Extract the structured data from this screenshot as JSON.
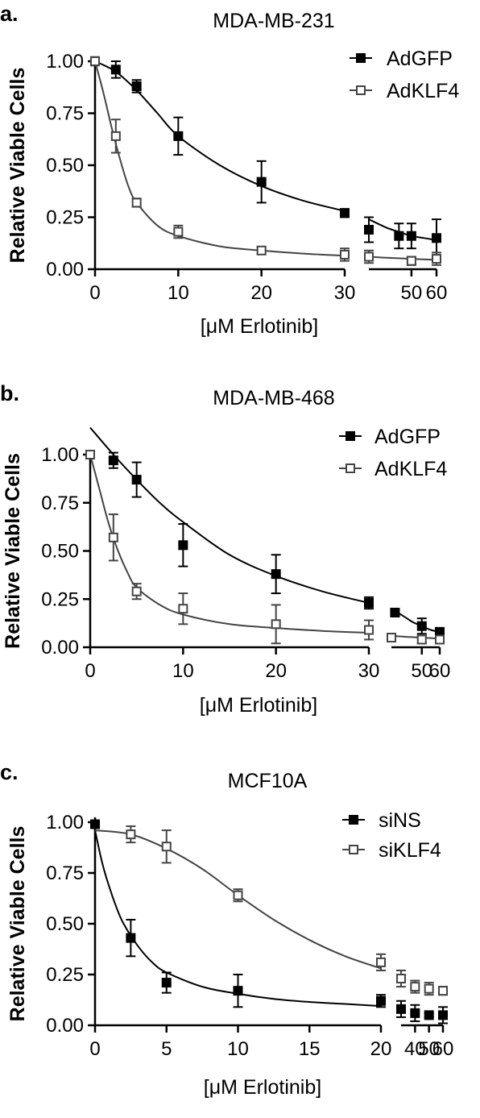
{
  "colors": {
    "filled": "#000000",
    "open": "#444444",
    "axis": "#000000"
  },
  "chart_data": [
    {
      "type": "line",
      "panel_label": "a.",
      "title": "MDA-MB-231",
      "xlabel": "[μM Erlotinib]",
      "ylabel": "Relative Viable Cells",
      "ylim": [
        0,
        1.0
      ],
      "yticks": [
        "0.00",
        "0.25",
        "0.50",
        "0.75",
        "1.00"
      ],
      "yticks_values": [
        0,
        0.25,
        0.5,
        0.75,
        1.0
      ],
      "x_segments": [
        {
          "range": [
            0,
            30
          ],
          "ticks": [
            0,
            10,
            20,
            30
          ],
          "tick_labels": [
            "0",
            "10",
            "20",
            "30"
          ]
        },
        {
          "range": [
            33,
            60
          ],
          "ticks": [
            50,
            60
          ],
          "tick_labels": [
            "50",
            "60"
          ]
        }
      ],
      "legend_position": "top-right",
      "series": [
        {
          "name": "AdGFP",
          "marker": "filled-square",
          "x": [
            0,
            2.5,
            5,
            10,
            20,
            30,
            33,
            45,
            50,
            60
          ],
          "y": [
            1.0,
            0.96,
            0.88,
            0.64,
            0.42,
            0.27,
            0.19,
            0.16,
            0.16,
            0.15
          ],
          "err": [
            0.02,
            0.04,
            0.03,
            0.09,
            0.1,
            0.02,
            0.06,
            0.06,
            0.06,
            0.09
          ],
          "fit_x": [
            0,
            2.5,
            5,
            7.5,
            10,
            15,
            20,
            25,
            30,
            33,
            40,
            45,
            50,
            55,
            60
          ],
          "fit_y": [
            1.0,
            0.95,
            0.86,
            0.75,
            0.64,
            0.5,
            0.4,
            0.33,
            0.28,
            0.24,
            0.2,
            0.18,
            0.16,
            0.15,
            0.14
          ]
        },
        {
          "name": "AdKLF4",
          "marker": "open-square",
          "x": [
            0,
            2.5,
            5,
            10,
            20,
            30,
            33,
            50,
            60
          ],
          "y": [
            1.0,
            0.64,
            0.32,
            0.18,
            0.09,
            0.07,
            0.06,
            0.04,
            0.05
          ],
          "err": [
            0.02,
            0.08,
            0.02,
            0.03,
            0.015,
            0.03,
            0.03,
            0.02,
            0.03
          ],
          "fit_x": [
            0,
            1,
            2,
            3,
            4,
            5,
            7.5,
            10,
            15,
            20,
            25,
            30,
            33,
            40,
            50,
            60
          ],
          "fit_y": [
            1.0,
            0.85,
            0.68,
            0.53,
            0.4,
            0.32,
            0.21,
            0.16,
            0.11,
            0.09,
            0.075,
            0.065,
            0.06,
            0.055,
            0.05,
            0.045
          ]
        }
      ]
    },
    {
      "type": "line",
      "panel_label": "b.",
      "title": "MDA-MB-468",
      "xlabel": "[μM Erlotinib]",
      "ylabel": "Relative Viable Cells",
      "ylim": [
        0,
        1.0
      ],
      "yticks": [
        "0.00",
        "0.25",
        "0.50",
        "0.75",
        "1.00"
      ],
      "yticks_values": [
        0,
        0.25,
        0.5,
        0.75,
        1.0
      ],
      "x_segments": [
        {
          "range": [
            0,
            30
          ],
          "ticks": [
            0,
            10,
            20,
            30
          ],
          "tick_labels": [
            "0",
            "10",
            "20",
            "30"
          ]
        },
        {
          "range": [
            33,
            60
          ],
          "ticks": [
            50,
            60
          ],
          "tick_labels": [
            "50",
            "60"
          ]
        }
      ],
      "legend_position": "top-right",
      "series": [
        {
          "name": "AdGFP",
          "marker": "filled-square",
          "x": [
            0,
            2.5,
            5,
            10,
            20,
            30,
            35,
            50,
            60
          ],
          "y": [
            1.0,
            0.97,
            0.87,
            0.53,
            0.38,
            0.23,
            0.18,
            0.11,
            0.08
          ],
          "err": [
            0.02,
            0.04,
            0.09,
            0.11,
            0.1,
            0.03,
            0.02,
            0.04,
            0.02
          ],
          "fit_x": [
            0,
            2.5,
            5,
            7.5,
            10,
            15,
            20,
            25,
            30,
            33,
            40,
            45,
            50,
            55,
            60
          ],
          "fit_y": [
            1.14,
            1.0,
            0.87,
            0.75,
            0.65,
            0.48,
            0.37,
            0.29,
            0.23,
            0.2,
            0.16,
            0.13,
            0.11,
            0.09,
            0.08
          ]
        },
        {
          "name": "AdKLF4",
          "marker": "open-square",
          "x": [
            0,
            2.5,
            5,
            10,
            20,
            30,
            33,
            50,
            60
          ],
          "y": [
            1.0,
            0.57,
            0.29,
            0.2,
            0.12,
            0.09,
            0.05,
            0.04,
            0.04
          ],
          "err": [
            0.02,
            0.12,
            0.04,
            0.08,
            0.1,
            0.05,
            0.02,
            0.02,
            0.02
          ],
          "fit_x": [
            0,
            1,
            2,
            3,
            4,
            5,
            7.5,
            10,
            15,
            20,
            25,
            30,
            33,
            40,
            50,
            60
          ],
          "fit_y": [
            1.0,
            0.82,
            0.64,
            0.5,
            0.39,
            0.31,
            0.22,
            0.17,
            0.12,
            0.1,
            0.085,
            0.075,
            0.06,
            0.055,
            0.05,
            0.045
          ]
        }
      ]
    },
    {
      "type": "line",
      "panel_label": "c.",
      "title": "MCF10A",
      "xlabel": "[μM Erlotinib]",
      "ylabel": "Relative Viable Cells",
      "ylim": [
        0,
        1.0
      ],
      "yticks": [
        "0.00",
        "0.25",
        "0.50",
        "0.75",
        "1.00"
      ],
      "yticks_values": [
        0,
        0.25,
        0.5,
        0.75,
        1.0
      ],
      "x_segments": [
        {
          "range": [
            0,
            20
          ],
          "ticks": [
            0,
            5,
            10,
            15,
            20
          ],
          "tick_labels": [
            "0",
            "5",
            "10",
            "15",
            "20"
          ]
        },
        {
          "range": [
            30,
            60
          ],
          "ticks": [
            40,
            50,
            60
          ],
          "tick_labels": [
            "40",
            "50",
            "60"
          ]
        }
      ],
      "legend_position": "top-right",
      "series": [
        {
          "name": "siNS",
          "marker": "filled-square",
          "x": [
            0,
            2.5,
            5,
            10,
            20,
            30,
            40,
            50,
            60
          ],
          "y": [
            0.99,
            0.43,
            0.21,
            0.17,
            0.12,
            0.08,
            0.06,
            0.05,
            0.05
          ],
          "err": [
            0.01,
            0.09,
            0.05,
            0.08,
            0.03,
            0.04,
            0.04,
            0.01,
            0.04
          ],
          "fit_x": [
            0,
            0.5,
            1,
            1.5,
            2,
            3,
            4,
            5,
            7.5,
            10,
            12.5,
            15,
            17.5,
            20
          ],
          "fit_y": [
            0.96,
            0.8,
            0.68,
            0.58,
            0.5,
            0.39,
            0.31,
            0.26,
            0.19,
            0.155,
            0.13,
            0.115,
            0.105,
            0.095
          ]
        },
        {
          "name": "siKLF4",
          "marker": "open-square",
          "x": [
            2.5,
            5,
            10,
            20,
            30,
            40,
            50,
            60
          ],
          "y": [
            0.94,
            0.88,
            0.64,
            0.31,
            0.23,
            0.19,
            0.18,
            0.17
          ],
          "err": [
            0.04,
            0.08,
            0.03,
            0.04,
            0.04,
            0.03,
            0.03,
            0.02
          ],
          "fit_x": [
            0,
            2.5,
            5,
            7.5,
            10,
            12.5,
            15,
            17.5,
            20
          ],
          "fit_y": [
            0.96,
            0.94,
            0.87,
            0.77,
            0.64,
            0.52,
            0.42,
            0.34,
            0.28
          ]
        }
      ]
    }
  ]
}
